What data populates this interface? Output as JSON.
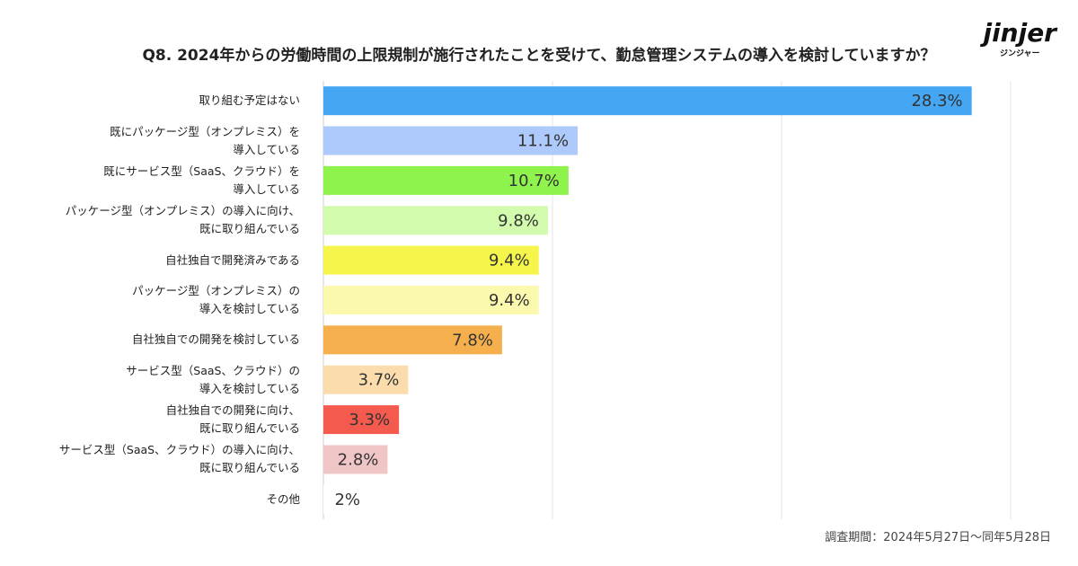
{
  "title": "Q8. 2024年からの労働時間の上限規制が施行されたことを受けて、勤怠管理システムの導入を検討していますか？",
  "logo": {
    "name": "jinjer",
    "sub": "ジンジャー"
  },
  "note": "調査期間：2024年5月27日～同年5月28日",
  "chart_data": {
    "type": "bar",
    "orientation": "horizontal",
    "categories": [
      "取り組む予定はない",
      "既にパッケージ型（オンプレミス）を\n導入している",
      "既にサービス型（SaaS、クラウド）を\n導入している",
      "パッケージ型（オンプレミス）の導入に向け、\n既に取り組んでいる",
      "自社独自で開発済みである",
      "パッケージ型（オンプレミス）の\n導入を検討している",
      "自社独自での開発を検討している",
      "サービス型（SaaS、クラウド）の\n導入を検討している",
      "自社独自での開発に向け、\n既に取り組んでいる",
      "サービス型（SaaS、クラウド）の導入に向け、\n既に取り組んでいる",
      "その他"
    ],
    "values": [
      28.3,
      11.1,
      10.7,
      9.8,
      9.4,
      9.4,
      7.8,
      3.7,
      3.3,
      2.8,
      2
    ],
    "value_labels": [
      "28.3%",
      "11.1%",
      "10.7%",
      "9.8%",
      "9.4%",
      "9.4%",
      "7.8%",
      "3.7%",
      "3.3%",
      "2.8%",
      "2%"
    ],
    "colors": [
      "#45a6f3",
      "#aec9fb",
      "#8ef34c",
      "#d2fbad",
      "#f5f54c",
      "#fbf9ad",
      "#f5b04d",
      "#fbdcad",
      "#f45b4e",
      "#f0c5c5",
      "#ffffff"
    ],
    "xlim": [
      0,
      30
    ],
    "xticks": [
      0,
      10,
      20,
      30
    ],
    "tick_labels": false,
    "grid": true
  }
}
